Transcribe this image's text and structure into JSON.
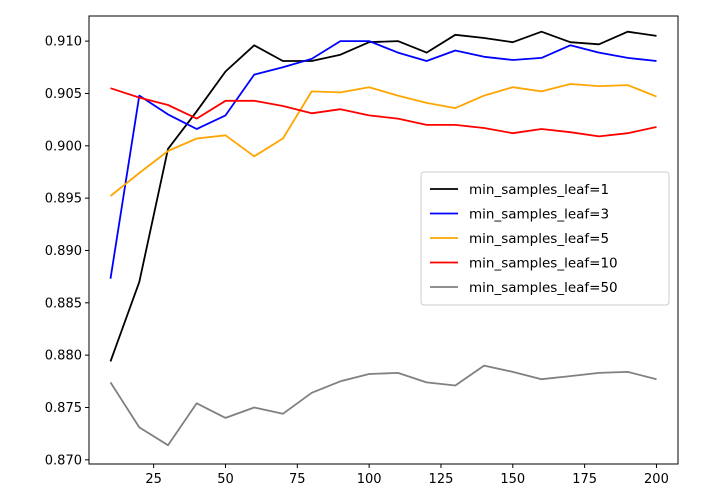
{
  "chart_data": {
    "type": "line",
    "title": "",
    "xlabel": "",
    "ylabel": "",
    "xlim": [
      2.5,
      207.5
    ],
    "ylim": [
      0.8696,
      0.9124
    ],
    "xticks": [
      25,
      50,
      75,
      100,
      125,
      150,
      175,
      200
    ],
    "xtick_labels": [
      "25",
      "50",
      "75",
      "100",
      "125",
      "150",
      "175",
      "200"
    ],
    "yticks": [
      0.87,
      0.875,
      0.88,
      0.885,
      0.89,
      0.895,
      0.9,
      0.905,
      0.91
    ],
    "ytick_labels": [
      "0.870",
      "0.875",
      "0.880",
      "0.885",
      "0.890",
      "0.895",
      "0.900",
      "0.905",
      "0.910"
    ],
    "grid": false,
    "legend_position": "center-right",
    "x": [
      10,
      20,
      30,
      40,
      50,
      60,
      70,
      80,
      90,
      100,
      110,
      120,
      130,
      140,
      150,
      160,
      170,
      180,
      190,
      200
    ],
    "series": [
      {
        "name": "min_samples_leaf=1",
        "color": "#000000",
        "values": [
          0.8794,
          0.887,
          0.8997,
          0.9033,
          0.9071,
          0.9096,
          0.9081,
          0.9081,
          0.9087,
          0.9099,
          0.91,
          0.9089,
          0.9106,
          0.9103,
          0.9099,
          0.9109,
          0.9099,
          0.9097,
          0.9109,
          0.9105
        ]
      },
      {
        "name": "min_samples_leaf=3",
        "color": "#0000ff",
        "values": [
          0.8873,
          0.9048,
          0.903,
          0.9016,
          0.9029,
          0.9068,
          0.9075,
          0.9083,
          0.91,
          0.91,
          0.9089,
          0.9081,
          0.9091,
          0.9085,
          0.9082,
          0.9084,
          0.9096,
          0.9089,
          0.9084,
          0.9081
        ]
      },
      {
        "name": "min_samples_leaf=5",
        "color": "#ffa500",
        "values": [
          0.8952,
          0.8974,
          0.8995,
          0.9007,
          0.901,
          0.899,
          0.9007,
          0.9052,
          0.9051,
          0.9056,
          0.9048,
          0.9041,
          0.9036,
          0.9048,
          0.9056,
          0.9052,
          0.9059,
          0.9057,
          0.9058,
          0.9047
        ]
      },
      {
        "name": "min_samples_leaf=10",
        "color": "#ff0000",
        "values": [
          0.9055,
          0.9046,
          0.9039,
          0.9026,
          0.9043,
          0.9043,
          0.9038,
          0.9031,
          0.9035,
          0.9029,
          0.9026,
          0.902,
          0.902,
          0.9017,
          0.9012,
          0.9016,
          0.9013,
          0.9009,
          0.9012,
          0.9018
        ]
      },
      {
        "name": "min_samples_leaf=50",
        "color": "#808080",
        "values": [
          0.8774,
          0.8731,
          0.8714,
          0.8754,
          0.874,
          0.875,
          0.8744,
          0.8764,
          0.8775,
          0.8782,
          0.8783,
          0.8774,
          0.8771,
          0.879,
          0.8784,
          0.8777,
          0.878,
          0.8783,
          0.8784,
          0.8777
        ]
      }
    ]
  }
}
